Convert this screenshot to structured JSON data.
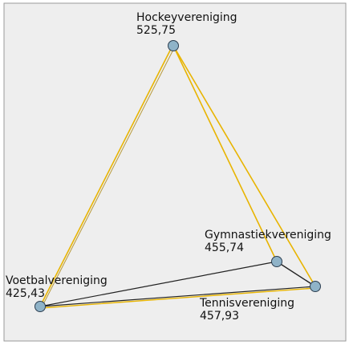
{
  "nodes": [
    {
      "label": "Hockeyvereniging",
      "value": "525,75"
    },
    {
      "label": "Gymnastiekvereniging",
      "value": "455,74"
    },
    {
      "label": "Voetbalvereniging",
      "value": "425,43"
    },
    {
      "label": "Tennisvereniging",
      "value": "457,93"
    }
  ]
}
